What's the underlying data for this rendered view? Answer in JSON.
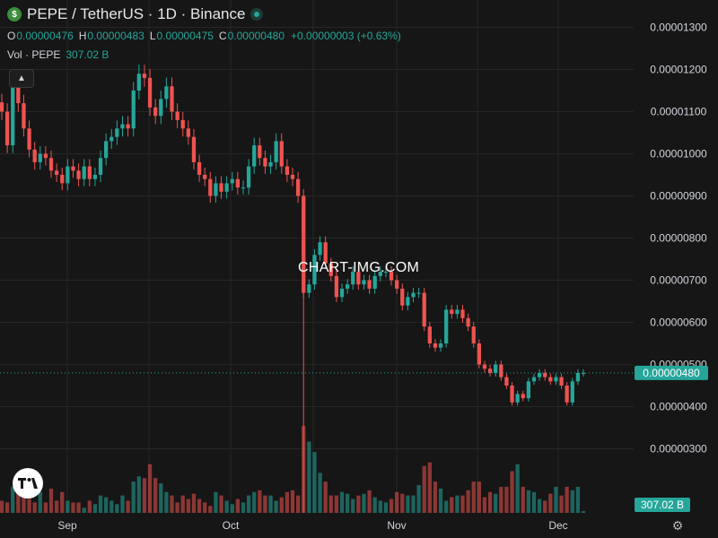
{
  "header": {
    "logo_glyph": "$",
    "title": "PEPE / TetherUS · 1D · Binance"
  },
  "ohlc": {
    "o_label": "O",
    "o": "0.00000476",
    "h_label": "H",
    "h": "0.00000483",
    "l_label": "L",
    "l": "0.00000475",
    "c_label": "C",
    "c": "0.00000480",
    "change": "+0.00000003 (+0.63%)"
  },
  "volume": {
    "label": "Vol · PEPE",
    "value": "307.02 B"
  },
  "watermark": "CHART-IMG.COM",
  "colors": {
    "up": "#26a69a",
    "down": "#ef5350",
    "background": "#161616",
    "grid": "#262626"
  },
  "icons": {
    "collapse": "chevron-up-icon",
    "settings": "gear-icon",
    "brand": "tradingview-logo"
  },
  "chart_data": {
    "type": "candlestick",
    "x_tick_labels": [
      "Sep",
      "Oct",
      "Nov",
      "Dec"
    ],
    "y_tick_labels": [
      "0.00001300",
      "0.00001200",
      "0.00001100",
      "0.00001000",
      "0.00000900",
      "0.00000800",
      "0.00000700",
      "0.00000600",
      "0.00000500",
      "0.00000400",
      "0.00000300"
    ],
    "ylim": [
      2.5e-06,
      1.36e-05
    ],
    "last_price_label": "0.00000480",
    "last_volume_label": "307.02 B",
    "grid": true,
    "closes": [
      1.1e-05,
      1.02e-05,
      1.16e-05,
      1.12e-05,
      1.06e-05,
      1.01e-05,
      9.8e-06,
      1e-05,
      9.9e-06,
      9.6e-06,
      9.5e-06,
      9.3e-06,
      9.7e-06,
      9.6e-06,
      9.4e-06,
      9.7e-06,
      9.4e-06,
      9.5e-06,
      9.9e-06,
      1.03e-05,
      1.04e-05,
      1.06e-05,
      1.07e-05,
      1.06e-05,
      1.15e-05,
      1.19e-05,
      1.18e-05,
      1.11e-05,
      1.09e-05,
      1.13e-05,
      1.16e-05,
      1.1e-05,
      1.08e-05,
      1.06e-05,
      1.04e-05,
      9.8e-06,
      9.5e-06,
      9.4e-06,
      9e-06,
      9.3e-06,
      9.1e-06,
      9.3e-06,
      9.4e-06,
      9.2e-06,
      9.2e-06,
      9.7e-06,
      1.02e-05,
      9.9e-06,
      9.7e-06,
      9.8e-06,
      1.03e-05,
      9.7e-06,
      9.5e-06,
      9.4e-06,
      9e-06,
      6.7e-06,
      6.9e-06,
      7.6e-06,
      7.9e-06,
      7.4e-06,
      7.1e-06,
      6.6e-06,
      6.8e-06,
      6.9e-06,
      7.2e-06,
      6.9e-06,
      7e-06,
      6.8e-06,
      7.1e-06,
      7.2e-06,
      7.2e-06,
      7e-06,
      6.8e-06,
      6.4e-06,
      6.6e-06,
      6.7e-06,
      6.7e-06,
      5.9e-06,
      5.5e-06,
      5.4e-06,
      5.5e-06,
      6.3e-06,
      6.2e-06,
      6.3e-06,
      6.1e-06,
      5.9e-06,
      5.5e-06,
      5e-06,
      4.9e-06,
      4.8e-06,
      5e-06,
      4.7e-06,
      4.5e-06,
      4.1e-06,
      4.3e-06,
      4.2e-06,
      4.6e-06,
      4.7e-06,
      4.8e-06,
      4.7e-06,
      4.6e-06,
      4.7e-06,
      4.5e-06,
      4.1e-06,
      4.6e-06,
      4.8e-06,
      4.8e-06
    ],
    "volumes": [
      14,
      12,
      30,
      34,
      34,
      16,
      12,
      24,
      12,
      28,
      14,
      24,
      14,
      12,
      12,
      6,
      14,
      10,
      20,
      18,
      14,
      10,
      20,
      14,
      36,
      42,
      40,
      56,
      40,
      34,
      24,
      20,
      12,
      20,
      16,
      22,
      16,
      12,
      8,
      24,
      20,
      14,
      10,
      16,
      12,
      20,
      24,
      26,
      20,
      20,
      14,
      18,
      24,
      26,
      20,
      100,
      82,
      70,
      46,
      36,
      20,
      20,
      24,
      22,
      16,
      20,
      22,
      26,
      18,
      14,
      12,
      16,
      24,
      22,
      20,
      20,
      32,
      54,
      58,
      36,
      28,
      14,
      18,
      20,
      20,
      26,
      36,
      36,
      18,
      24,
      22,
      30,
      30,
      48,
      56,
      30,
      26,
      24,
      16,
      14,
      22,
      30,
      20,
      30,
      26,
      30,
      2
    ]
  }
}
